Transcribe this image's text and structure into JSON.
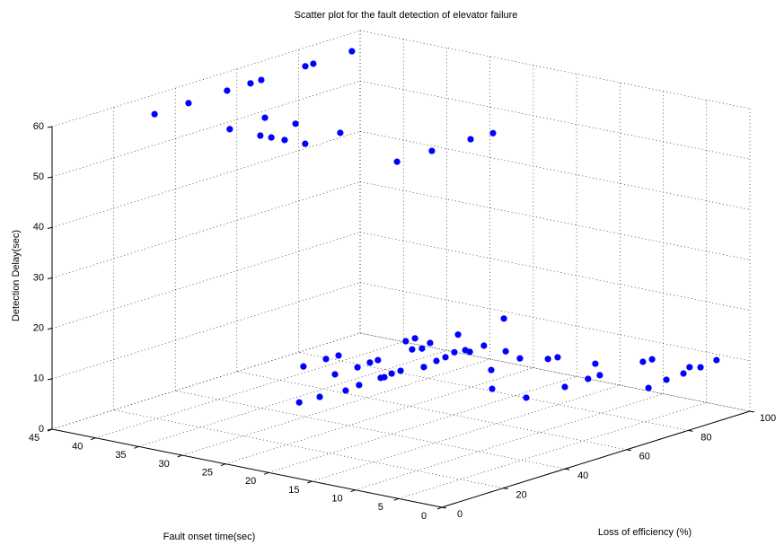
{
  "chart_data": {
    "type": "scatter3d",
    "title": "Scatter plot for the fault detection of elevator failure",
    "x_label": "Loss of efficiency (%)",
    "y_label": "Fault onset time(sec)",
    "z_label": "Detection Delay(sec)",
    "color": "#0000ff",
    "grid": true,
    "xlim": [
      0,
      100
    ],
    "xticks": [
      0,
      20,
      40,
      60,
      80,
      100
    ],
    "ylim": [
      0,
      45
    ],
    "yticks": [
      0,
      5,
      10,
      15,
      20,
      25,
      30,
      35,
      40,
      45
    ],
    "zlim": [
      0,
      60
    ],
    "zticks": [
      0,
      10,
      20,
      30,
      40,
      50,
      60
    ],
    "x": [
      20.9,
      32.2,
      45,
      52.6,
      56.1,
      70.4,
      73,
      85.8,
      52.9,
      64.6,
      52.7,
      52.9,
      53,
      64.7,
      53.2,
      64.6,
      53.5,
      64.8,
      77.1,
      83.8,
      39.7,
      47.3,
      51.1,
      16.4,
      22.5,
      38.7,
      29.8,
      46,
      35,
      50.6,
      53.2,
      42.3,
      43.2,
      46.4,
      49.3,
      68.7,
      71.7,
      64.3,
      66.1,
      54.6,
      70.7,
      60.1,
      63.6,
      67.9,
      79.5,
      70.6,
      70.1,
      75.8,
      61.3,
      49.5,
      95.5,
      75,
      72.3,
      48.2,
      75.5,
      77.8,
      59.9,
      68,
      78.5,
      71.8,
      85.8,
      88.5,
      69.9,
      77.4,
      83.5,
      88.3,
      89.6,
      96.2
    ],
    "y": [
      40.6,
      40.7,
      40.8,
      40.8,
      40.8,
      40.8,
      40.8,
      40.9,
      43.3,
      43.4,
      39.7,
      38.5,
      37,
      39.9,
      34.7,
      34.7,
      24.2,
      24.2,
      24.1,
      23.9,
      30.1,
      30.2,
      30.1,
      22.3,
      22.1,
      26.1,
      21.7,
      26.1,
      22,
      26.3,
      26.3,
      22.1,
      22,
      22.3,
      22.3,
      28.6,
      28.6,
      26.3,
      25.8,
      21.5,
      26.5,
      22,
      22.2,
      22.7,
      26.4,
      22.4,
      21.7,
      22.1,
      16.1,
      11.8,
      26.8,
      19.3,
      16.7,
      7.4,
      14.6,
      14.3,
      7.1,
      7.3,
      10.2,
      7.3,
      7.3,
      7.2,
      1,
      1.6,
      1.8,
      2.8,
      2,
      2.5
    ],
    "z": [
      60,
      60,
      60,
      60,
      60,
      60,
      60,
      60,
      50,
      50,
      50,
      50,
      50,
      50,
      50,
      50,
      50,
      50,
      50,
      50,
      10,
      10,
      10,
      10,
      10,
      10,
      10,
      10,
      10,
      10,
      10,
      10,
      10,
      10,
      10,
      10,
      10,
      10,
      10,
      10,
      10,
      10,
      10,
      10,
      10,
      10,
      10,
      10,
      10,
      10,
      10,
      10,
      10,
      10,
      10,
      10,
      10,
      10,
      10,
      10,
      10,
      10,
      10,
      10,
      10,
      10,
      10,
      10
    ]
  }
}
